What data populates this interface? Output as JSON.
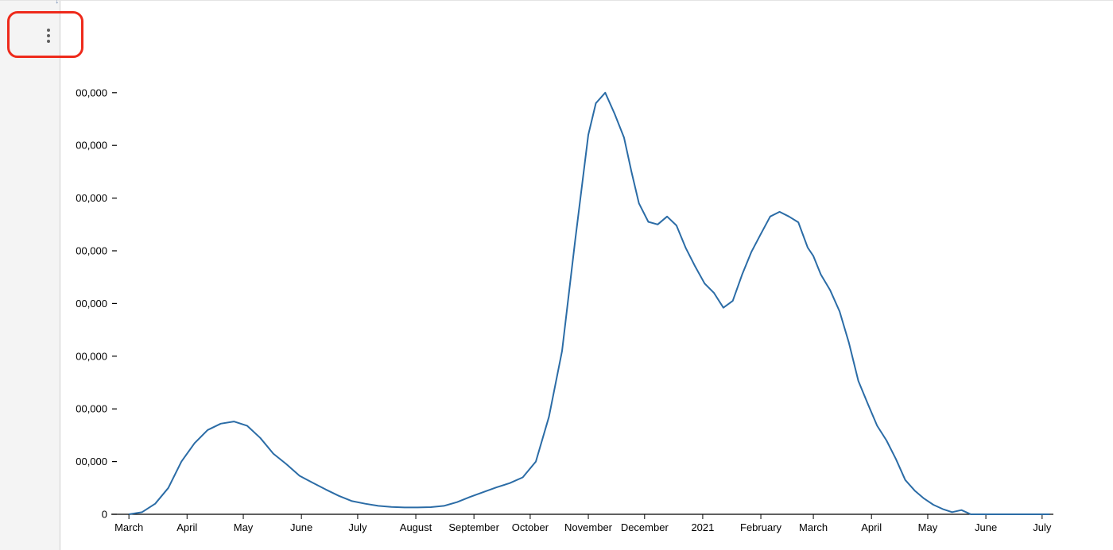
{
  "menu": {
    "icon": "more-vertical-icon"
  },
  "annotation": {
    "color": "#ee2a1b"
  },
  "chart_data": {
    "type": "line",
    "title": "",
    "xlabel": "",
    "ylabel": "",
    "ylim": [
      0,
      900000
    ],
    "y_ticks": [
      {
        "value": 0,
        "label": "0"
      },
      {
        "value": 100000,
        "label": "00,000"
      },
      {
        "value": 200000,
        "label": "00,000"
      },
      {
        "value": 300000,
        "label": "00,000"
      },
      {
        "value": 400000,
        "label": "00,000"
      },
      {
        "value": 500000,
        "label": "00,000"
      },
      {
        "value": 600000,
        "label": "00,000"
      },
      {
        "value": 700000,
        "label": "00,000"
      },
      {
        "value": 800000,
        "label": "00,000"
      }
    ],
    "xlim": [
      "2020-02-24",
      "2021-07-07"
    ],
    "x_ticks": [
      {
        "date": "2020-03-01",
        "label": "March"
      },
      {
        "date": "2020-04-01",
        "label": "April"
      },
      {
        "date": "2020-05-01",
        "label": "May"
      },
      {
        "date": "2020-06-01",
        "label": "June"
      },
      {
        "date": "2020-07-01",
        "label": "July"
      },
      {
        "date": "2020-08-01",
        "label": "August"
      },
      {
        "date": "2020-09-01",
        "label": "September"
      },
      {
        "date": "2020-10-01",
        "label": "October"
      },
      {
        "date": "2020-11-01",
        "label": "November"
      },
      {
        "date": "2020-12-01",
        "label": "December"
      },
      {
        "date": "2021-01-01",
        "label": "2021"
      },
      {
        "date": "2021-02-01",
        "label": "February"
      },
      {
        "date": "2021-03-01",
        "label": "March"
      },
      {
        "date": "2021-04-01",
        "label": "April"
      },
      {
        "date": "2021-05-01",
        "label": "May"
      },
      {
        "date": "2021-06-01",
        "label": "June"
      },
      {
        "date": "2021-07-01",
        "label": "July"
      }
    ],
    "grid": false,
    "series": [
      {
        "color": "#2b6ca6",
        "x": [
          "2020-03-01",
          "2020-03-08",
          "2020-03-15",
          "2020-03-22",
          "2020-03-29",
          "2020-04-05",
          "2020-04-12",
          "2020-04-19",
          "2020-04-26",
          "2020-05-03",
          "2020-05-10",
          "2020-05-17",
          "2020-05-24",
          "2020-05-31",
          "2020-06-07",
          "2020-06-14",
          "2020-06-21",
          "2020-06-28",
          "2020-07-05",
          "2020-07-12",
          "2020-07-19",
          "2020-07-26",
          "2020-08-02",
          "2020-08-09",
          "2020-08-16",
          "2020-08-23",
          "2020-08-30",
          "2020-09-06",
          "2020-09-13",
          "2020-09-20",
          "2020-09-27",
          "2020-10-04",
          "2020-10-11",
          "2020-10-18",
          "2020-10-25",
          "2020-11-01",
          "2020-11-05",
          "2020-11-10",
          "2020-11-15",
          "2020-11-20",
          "2020-11-24",
          "2020-11-28",
          "2020-12-03",
          "2020-12-08",
          "2020-12-13",
          "2020-12-18",
          "2020-12-23",
          "2020-12-28",
          "2021-01-02",
          "2021-01-07",
          "2021-01-12",
          "2021-01-17",
          "2021-01-22",
          "2021-01-27",
          "2021-02-01",
          "2021-02-06",
          "2021-02-11",
          "2021-02-16",
          "2021-02-21",
          "2021-02-26",
          "2021-03-01",
          "2021-03-05",
          "2021-03-10",
          "2021-03-15",
          "2021-03-20",
          "2021-03-25",
          "2021-03-30",
          "2021-04-04",
          "2021-04-09",
          "2021-04-14",
          "2021-04-19",
          "2021-04-24",
          "2021-04-29",
          "2021-05-04",
          "2021-05-09",
          "2021-05-14",
          "2021-05-19",
          "2021-05-24",
          "2021-05-29",
          "2021-06-03",
          "2021-06-08",
          "2021-06-13",
          "2021-06-14",
          "2021-06-18",
          "2021-06-23",
          "2021-06-28",
          "2021-07-03",
          "2021-07-05"
        ],
        "values": [
          0,
          4000,
          20000,
          50000,
          100000,
          135000,
          160000,
          172000,
          176000,
          168000,
          145000,
          115000,
          95000,
          73000,
          60000,
          47000,
          35000,
          25000,
          20000,
          16000,
          14000,
          13000,
          13000,
          13500,
          16000,
          23000,
          33000,
          42000,
          51000,
          59000,
          70000,
          100000,
          185000,
          310000,
          520000,
          720000,
          780000,
          800000,
          760000,
          715000,
          650000,
          590000,
          555000,
          550000,
          565000,
          548000,
          505000,
          470000,
          438000,
          420000,
          392000,
          405000,
          455000,
          498000,
          532000,
          565000,
          574000,
          565000,
          554000,
          506000,
          490000,
          455000,
          425000,
          385000,
          325000,
          253000,
          210000,
          168000,
          140000,
          105000,
          65000,
          45000,
          30000,
          18000,
          10000,
          4000,
          8000,
          0,
          0,
          0,
          0,
          0,
          0,
          0,
          0,
          0,
          0,
          0
        ]
      }
    ]
  }
}
